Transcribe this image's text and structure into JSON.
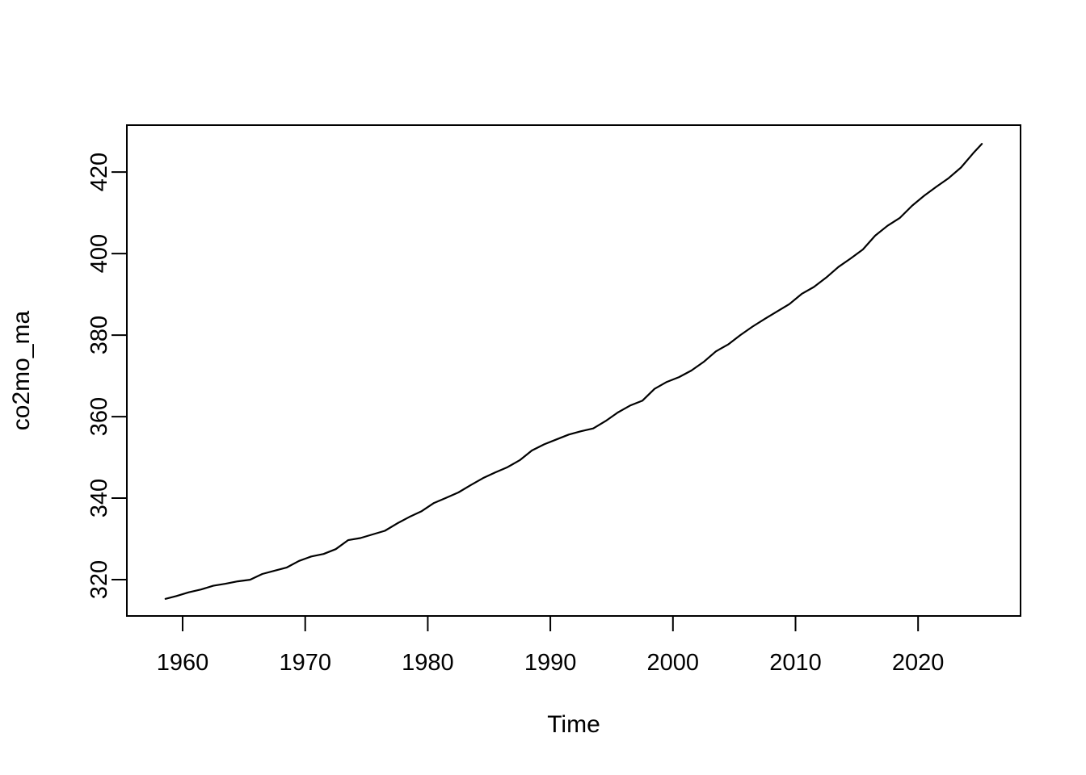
{
  "figure": {
    "background_color": "#ffffff",
    "foreground_color": "#000000"
  },
  "chart_data": {
    "type": "line",
    "title": "",
    "xlabel": "Time",
    "ylabel": "co2mo_ma",
    "xlim": [
      1955.45,
      2028.36
    ],
    "ylim": [
      311.1,
      431.5
    ],
    "x_ticks": [
      1960,
      1970,
      1980,
      1990,
      2000,
      2010,
      2020
    ],
    "y_ticks": [
      320,
      340,
      360,
      380,
      400,
      420
    ],
    "grid": false,
    "legend_position": "none",
    "line_color": "#000000",
    "series": [
      {
        "name": "co2mo_ma",
        "color": "#000000",
        "x": [
          1958.6,
          1959.5,
          1960.5,
          1961.5,
          1962.5,
          1963.5,
          1964.5,
          1965.5,
          1966.5,
          1967.5,
          1968.5,
          1969.5,
          1970.5,
          1971.5,
          1972.5,
          1973.5,
          1974.5,
          1975.5,
          1976.5,
          1977.5,
          1978.5,
          1979.5,
          1980.5,
          1981.5,
          1982.5,
          1983.5,
          1984.5,
          1985.5,
          1986.5,
          1987.5,
          1988.5,
          1989.5,
          1990.5,
          1991.5,
          1992.5,
          1993.5,
          1994.5,
          1995.5,
          1996.5,
          1997.5,
          1998.5,
          1999.5,
          2000.5,
          2001.5,
          2002.5,
          2003.5,
          2004.5,
          2005.5,
          2006.5,
          2007.5,
          2008.5,
          2009.5,
          2010.5,
          2011.5,
          2012.5,
          2013.5,
          2014.5,
          2015.5,
          2016.5,
          2017.5,
          2018.5,
          2019.5,
          2020.5,
          2021.5,
          2022.5,
          2023.5,
          2024.5,
          2025.2
        ],
        "y": [
          315.3,
          316.0,
          316.9,
          317.6,
          318.5,
          319.0,
          319.6,
          320.0,
          321.4,
          322.2,
          323.0,
          324.6,
          325.7,
          326.3,
          327.5,
          329.7,
          330.2,
          331.1,
          332.0,
          333.8,
          335.4,
          336.8,
          338.8,
          340.1,
          341.4,
          343.2,
          344.9,
          346.3,
          347.6,
          349.3,
          351.7,
          353.2,
          354.4,
          355.6,
          356.4,
          357.1,
          358.9,
          361.0,
          362.7,
          363.9,
          366.8,
          368.5,
          369.7,
          371.3,
          373.4,
          376.0,
          377.7,
          380.0,
          382.1,
          384.0,
          385.8,
          387.6,
          390.1,
          391.8,
          394.1,
          396.7,
          398.8,
          401.0,
          404.4,
          406.8,
          408.7,
          411.7,
          414.2,
          416.4,
          418.5,
          421.1,
          424.6,
          426.9
        ]
      }
    ]
  }
}
